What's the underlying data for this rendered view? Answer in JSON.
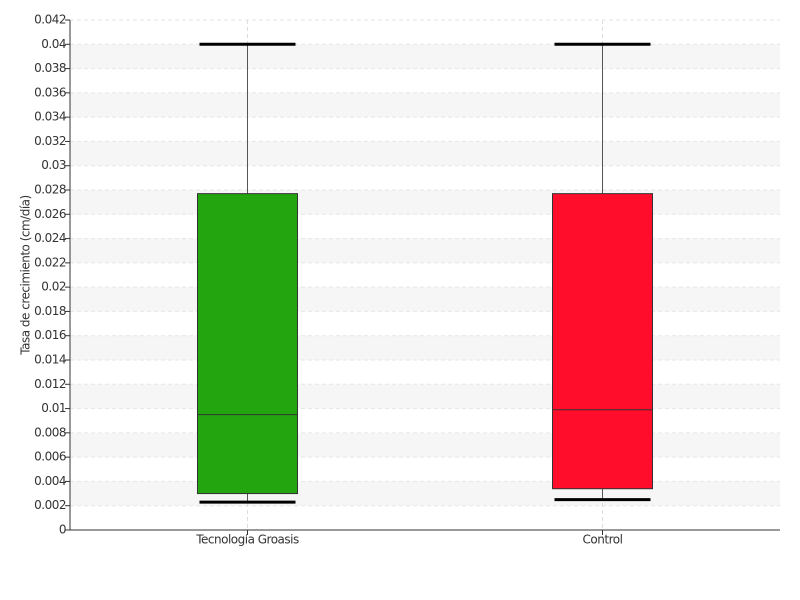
{
  "chart_data": {
    "type": "box",
    "y_label": "Tasa de crecimiento (cm/día)",
    "categories": [
      "Tecnología Groasis",
      "Control"
    ],
    "boxes": [
      {
        "low": 0.0023,
        "q1": 0.003,
        "median": 0.0095,
        "q3": 0.0277,
        "high": 0.04,
        "color": "#22a50e"
      },
      {
        "low": 0.0025,
        "q1": 0.0034,
        "median": 0.0099,
        "q3": 0.0277,
        "high": 0.04,
        "color": "#ff0d2a"
      }
    ],
    "ylim": [
      0,
      0.042
    ],
    "yticks": [
      0,
      0.002,
      0.004,
      0.006,
      0.008,
      0.01,
      0.012,
      0.014,
      0.016,
      0.018,
      0.02,
      0.022,
      0.024,
      0.026,
      0.028,
      0.03,
      0.032,
      0.034,
      0.036,
      0.038,
      0.04,
      0.042
    ],
    "grid": true
  }
}
